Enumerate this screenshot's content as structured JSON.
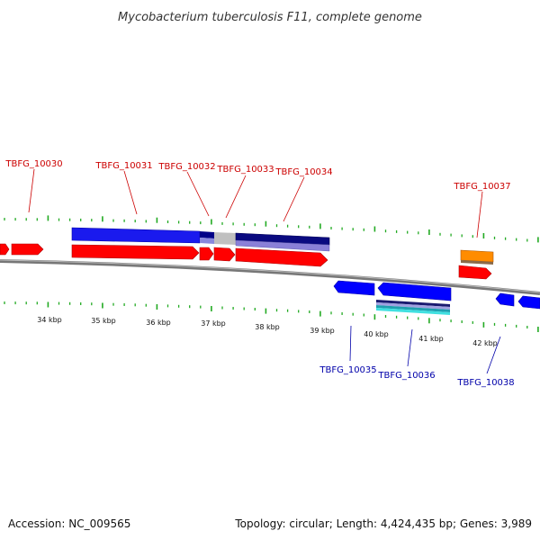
{
  "title": "Mycobacterium tuberculosis F11, complete genome",
  "footer": {
    "accession": "Accession: NC_009565",
    "topology": "Topology: circular; Length: 4,424,435 bp; Genes: 3,989"
  },
  "colors": {
    "forward_gene": "#ff0000",
    "reverse_gene": "#0000ff",
    "rna_gene": "#ff8c00",
    "backbone": "#888888",
    "tick": "#22aa22",
    "label_top": "#cc0000",
    "label_bottom": "#0000aa"
  },
  "scale": {
    "kbp_labels": [
      "34 kbp",
      "35 kbp",
      "36 kbp",
      "37 kbp",
      "38 kbp",
      "39 kbp",
      "40 kbp",
      "41 kbp",
      "42 kbp"
    ]
  },
  "gene_labels": {
    "top": [
      "TBFG_10030",
      "TBFG_10031",
      "TBFG_10032",
      "TBFG_10033",
      "TBFG_10034",
      "TBFG_10037"
    ],
    "bottom": [
      "TBFG_10035",
      "TBFG_10036",
      "TBFG_10038"
    ]
  }
}
